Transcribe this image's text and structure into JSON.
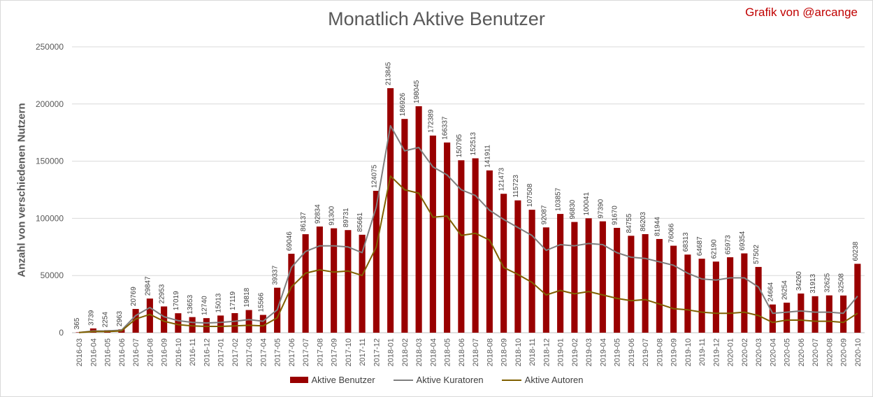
{
  "chart_data": {
    "type": "bar",
    "title": "Monatlich Aktive Benutzer",
    "credit": "Grafik von @arcange",
    "xlabel": "",
    "ylabel": "Anzahl von verschiedenen Nutzern",
    "ylim": [
      0,
      250000
    ],
    "yticks": [
      "0",
      "50000",
      "100000",
      "150000",
      "200000",
      "250000"
    ],
    "grid": true,
    "legend_position": "bottom",
    "categories": [
      "2016-03",
      "2016-04",
      "2016-05",
      "2016-06",
      "2016-07",
      "2016-08",
      "2016-09",
      "2016-10",
      "2016-11",
      "2016-12",
      "2017-01",
      "2017-02",
      "2017-03",
      "2017-04",
      "2017-05",
      "2017-06",
      "2017-07",
      "2017-08",
      "2017-09",
      "2017-10",
      "2017-11",
      "2017-12",
      "2018-01",
      "2018-02",
      "2018-03",
      "2018-04",
      "2018-05",
      "2018-06",
      "2018-07",
      "2018-08",
      "2018-09",
      "2018-10",
      "2018-11",
      "2018-12",
      "2019-01",
      "2019-02",
      "2019-03",
      "2019-04",
      "2019-05",
      "2019-06",
      "2019-07",
      "2019-08",
      "2019-09",
      "2019-10",
      "2019-11",
      "2019-12",
      "2020-01",
      "2020-02",
      "2020-03",
      "2020-04",
      "2020-05",
      "2020-06",
      "2020-07",
      "2020-08",
      "2020-09",
      "2020-10"
    ],
    "series": [
      {
        "name": "Aktive Benutzer",
        "kind": "bar",
        "color": "#990000",
        "values": [
          365,
          3739,
          2254,
          2963,
          20769,
          29847,
          22953,
          17019,
          13653,
          12740,
          15013,
          17119,
          19818,
          15566,
          39337,
          69046,
          86137,
          92834,
          91300,
          89731,
          85661,
          124075,
          213845,
          186926,
          198045,
          172389,
          166337,
          150795,
          152513,
          141911,
          121473,
          115723,
          107508,
          92087,
          103857,
          96830,
          100041,
          97390,
          91670,
          84755,
          86203,
          81944,
          76066,
          68313,
          64687,
          62190,
          65973,
          69354,
          57502,
          24664,
          26254,
          34260,
          31913,
          32625,
          32508,
          60238
        ]
      },
      {
        "name": "Aktive Kuratoren",
        "kind": "line",
        "color": "#7f7f7f",
        "values": [
          200,
          1500,
          1600,
          2200,
          15000,
          22000,
          14000,
          10500,
          9000,
          8500,
          9000,
          10000,
          11500,
          10000,
          20000,
          57000,
          71000,
          76000,
          76000,
          75000,
          70000,
          110000,
          181000,
          159000,
          162000,
          145000,
          138000,
          125000,
          120000,
          107000,
          99000,
          92000,
          85000,
          72000,
          77000,
          76000,
          78000,
          77000,
          70000,
          66000,
          65000,
          62000,
          59000,
          52000,
          47000,
          46000,
          48000,
          48000,
          40000,
          17000,
          18000,
          19000,
          18000,
          18000,
          17000,
          32000
        ]
      },
      {
        "name": "Aktive Autoren",
        "kind": "line",
        "color": "#806000",
        "values": [
          100,
          1000,
          1000,
          1500,
          12000,
          16000,
          10000,
          7000,
          6000,
          5500,
          5500,
          6000,
          6500,
          6000,
          13000,
          40000,
          52000,
          55000,
          53000,
          54000,
          50000,
          75000,
          137000,
          125000,
          122000,
          101000,
          102000,
          85000,
          87000,
          81000,
          57000,
          51000,
          44000,
          33000,
          37000,
          34000,
          36000,
          33000,
          30000,
          28000,
          29000,
          25000,
          21000,
          20000,
          18000,
          17000,
          17000,
          18000,
          15000,
          9000,
          11000,
          11000,
          10000,
          10000,
          9000,
          17000
        ]
      }
    ]
  }
}
